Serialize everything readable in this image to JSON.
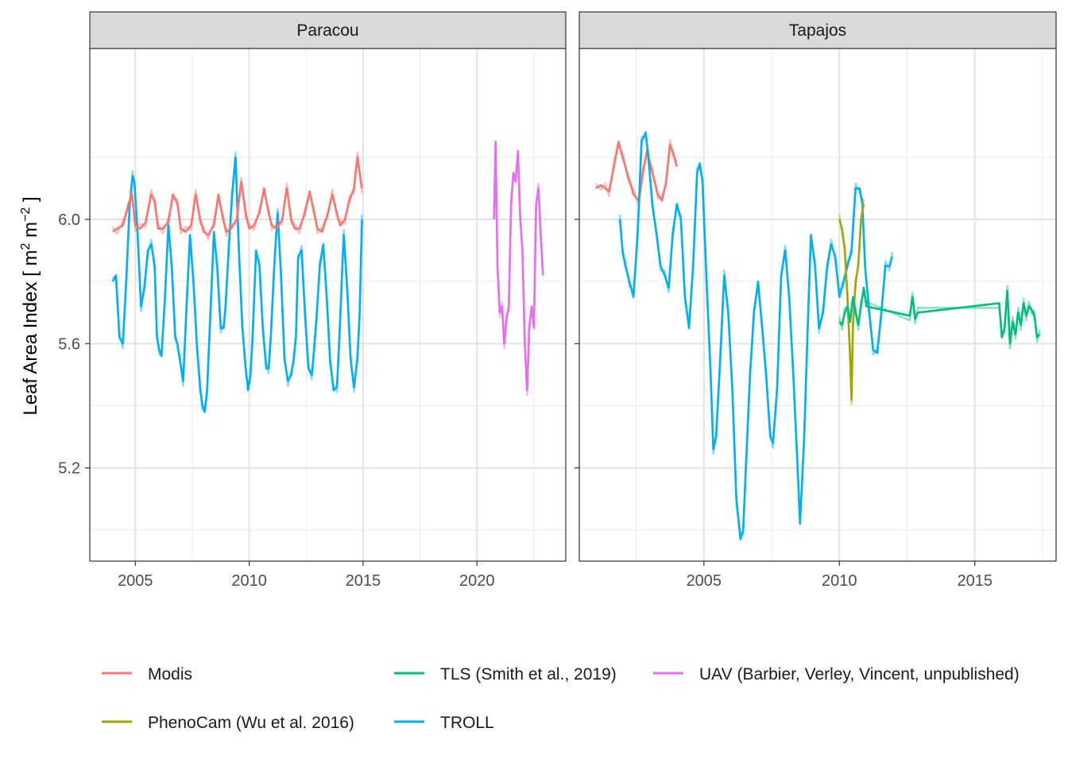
{
  "chart_data": {
    "type": "line",
    "ylabel": "Leaf Area Index [ m² m⁻² ]",
    "ylabel_parts": {
      "main": "Leaf Area Index [ m",
      "sup1": "2",
      "mid": " m",
      "sup2": "−2",
      "end": " ]"
    },
    "y_range": [
      4.9,
      6.55
    ],
    "y_ticks": [
      5.2,
      5.6,
      6.0
    ],
    "y_tick_labels": [
      "5.2",
      "5.6",
      "6.0"
    ],
    "grid": true,
    "legend_position": "bottom",
    "colors": {
      "Modis": "#F8766D",
      "PhenoCam (Wu et al. 2016)": "#A3A500",
      "TLS (Smith et al., 2019)": "#00BF7D",
      "TROLL": "#00B0F6",
      "UAV (Barbier, Verley, Vincent, unpublished)": "#E76BF3"
    },
    "legend": [
      "Modis",
      "PhenoCam (Wu et al. 2016)",
      "TLS (Smith et al., 2019)",
      "TROLL",
      "UAV (Barbier, Verley, Vincent, unpublished)"
    ],
    "panels": [
      {
        "title": "Paracou",
        "x_range": [
          2003.0,
          2023.9
        ],
        "x_ticks": [
          2005,
          2010,
          2015,
          2020
        ],
        "x_tick_labels": [
          "2005",
          "2010",
          "2015",
          "2020"
        ],
        "series": [
          {
            "name": "TROLL",
            "x": [
              2004.0,
              2004.15,
              2004.3,
              2004.45,
              2004.6,
              2004.75,
              2004.88,
              2004.96,
              2005.1,
              2005.25,
              2005.4,
              2005.55,
              2005.7,
              2005.85,
              2005.95,
              2006.05,
              2006.15,
              2006.3,
              2006.45,
              2006.6,
              2006.75,
              2006.85,
              2006.95,
              2007.1,
              2007.25,
              2007.4,
              2007.55,
              2007.7,
              2007.85,
              2007.95,
              2008.05,
              2008.15,
              2008.3,
              2008.45,
              2008.6,
              2008.75,
              2008.88,
              2008.96,
              2009.1,
              2009.25,
              2009.4,
              2009.55,
              2009.7,
              2009.85,
              2009.95,
              2010.05,
              2010.15,
              2010.3,
              2010.45,
              2010.6,
              2010.75,
              2010.85,
              2010.95,
              2011.1,
              2011.25,
              2011.4,
              2011.55,
              2011.7,
              2011.85,
              2011.95,
              2012.05,
              2012.15,
              2012.3,
              2012.45,
              2012.6,
              2012.75,
              2012.85,
              2012.95,
              2013.1,
              2013.25,
              2013.4,
              2013.55,
              2013.7,
              2013.85,
              2013.95,
              2014.05,
              2014.15,
              2014.3,
              2014.45,
              2014.6,
              2014.75,
              2014.85,
              2014.95
            ],
            "y": [
              5.8,
              5.82,
              5.62,
              5.6,
              5.8,
              6.05,
              6.14,
              6.12,
              5.95,
              5.72,
              5.78,
              5.9,
              5.92,
              5.85,
              5.62,
              5.58,
              5.56,
              5.75,
              5.98,
              5.85,
              5.62,
              5.6,
              5.55,
              5.48,
              5.72,
              5.95,
              5.8,
              5.6,
              5.45,
              5.4,
              5.38,
              5.45,
              5.7,
              5.96,
              5.84,
              5.65,
              5.65,
              5.72,
              5.9,
              6.08,
              6.2,
              5.9,
              5.65,
              5.52,
              5.45,
              5.5,
              5.62,
              5.9,
              5.85,
              5.65,
              5.52,
              5.52,
              5.62,
              5.85,
              6.02,
              5.82,
              5.55,
              5.48,
              5.5,
              5.55,
              5.62,
              5.88,
              5.9,
              5.7,
              5.52,
              5.5,
              5.58,
              5.68,
              5.85,
              5.92,
              5.75,
              5.55,
              5.45,
              5.46,
              5.6,
              5.78,
              5.95,
              5.78,
              5.55,
              5.46,
              5.55,
              5.7,
              6.0
            ]
          },
          {
            "name": "Modis",
            "x": [
              2004.0,
              2004.2,
              2004.45,
              2004.7,
              2004.85,
              2005.0,
              2005.2,
              2005.45,
              2005.7,
              2005.85,
              2006.0,
              2006.2,
              2006.45,
              2006.65,
              2006.85,
              2007.0,
              2007.2,
              2007.45,
              2007.65,
              2007.85,
              2008.0,
              2008.2,
              2008.45,
              2008.65,
              2008.85,
              2009.0,
              2009.2,
              2009.45,
              2009.65,
              2009.85,
              2010.0,
              2010.2,
              2010.45,
              2010.65,
              2010.85,
              2011.0,
              2011.2,
              2011.45,
              2011.65,
              2011.85,
              2012.0,
              2012.2,
              2012.45,
              2012.65,
              2012.85,
              2013.0,
              2013.2,
              2013.45,
              2013.65,
              2013.85,
              2014.0,
              2014.2,
              2014.4,
              2014.6,
              2014.75,
              2014.95
            ],
            "y": [
              5.96,
              5.97,
              5.98,
              6.05,
              6.08,
              5.98,
              5.97,
              5.99,
              6.08,
              6.06,
              5.97,
              5.97,
              5.99,
              6.08,
              6.05,
              5.97,
              5.96,
              5.98,
              6.08,
              6.0,
              5.96,
              5.95,
              5.98,
              6.08,
              6.0,
              5.96,
              5.97,
              6.0,
              6.12,
              6.02,
              5.97,
              5.98,
              6.02,
              6.1,
              6.02,
              5.98,
              5.97,
              6.0,
              6.1,
              6.0,
              5.97,
              5.97,
              6.02,
              6.09,
              6.02,
              5.97,
              5.96,
              6.02,
              6.08,
              6.02,
              5.98,
              6.0,
              6.06,
              6.1,
              6.2,
              6.1
            ]
          },
          {
            "name": "UAV (Barbier, Verley, Vincent, unpublished)",
            "x": [
              2020.75,
              2020.82,
              2020.9,
              2021.0,
              2021.1,
              2021.2,
              2021.3,
              2021.4,
              2021.5,
              2021.6,
              2021.7,
              2021.8,
              2021.9,
              2022.0,
              2022.1,
              2022.2,
              2022.3,
              2022.4,
              2022.5,
              2022.6,
              2022.7,
              2022.8,
              2022.9
            ],
            "y": [
              6.0,
              6.25,
              5.85,
              5.7,
              5.72,
              5.6,
              5.68,
              5.72,
              6.05,
              6.15,
              6.12,
              6.22,
              6.0,
              5.9,
              5.6,
              5.45,
              5.65,
              5.72,
              5.65,
              6.05,
              6.1,
              5.95,
              5.82
            ]
          }
        ]
      },
      {
        "title": "Tapajos",
        "x_range": [
          2000.4,
          2018.0
        ],
        "x_ticks": [
          2005,
          2010,
          2015
        ],
        "x_tick_labels": [
          "2005",
          "2010",
          "2015"
        ],
        "series": [
          {
            "name": "Modis",
            "x": [
              2001.0,
              2001.2,
              2001.35,
              2001.5,
              2001.7,
              2001.85,
              2002.0,
              2002.2,
              2002.4,
              2002.6,
              2002.75,
              2002.9,
              2003.1,
              2003.3,
              2003.45,
              2003.6,
              2003.75,
              2003.85,
              2004.0
            ],
            "y": [
              6.1,
              6.11,
              6.1,
              6.09,
              6.18,
              6.25,
              6.2,
              6.14,
              6.08,
              6.06,
              6.15,
              6.22,
              6.15,
              6.08,
              6.06,
              6.12,
              6.24,
              6.22,
              6.17
            ]
          },
          {
            "name": "TROLL",
            "x": [
              2001.9,
              2002.0,
              2002.1,
              2002.25,
              2002.4,
              2002.55,
              2002.7,
              2002.85,
              2002.95,
              2003.1,
              2003.25,
              2003.4,
              2003.55,
              2003.7,
              2003.85,
              2004.0,
              2004.15,
              2004.3,
              2004.45,
              2004.6,
              2004.75,
              2004.85,
              2004.95,
              2005.1,
              2005.25,
              2005.35,
              2005.45,
              2005.6,
              2005.75,
              2005.9,
              2006.05,
              2006.2,
              2006.35,
              2006.45,
              2006.55,
              2006.7,
              2006.85,
              2007.0,
              2007.15,
              2007.3,
              2007.45,
              2007.55,
              2007.7,
              2007.85,
              2008.0,
              2008.15,
              2008.3,
              2008.45,
              2008.55,
              2008.7,
              2008.85,
              2008.95,
              2009.1,
              2009.25,
              2009.4,
              2009.55,
              2009.7,
              2009.85,
              2010.0,
              2010.15,
              2010.3,
              2010.45,
              2010.6,
              2010.75,
              2010.85,
              2010.95,
              2011.1,
              2011.25,
              2011.4,
              2011.55,
              2011.7,
              2011.85,
              2011.95
            ],
            "y": [
              6.0,
              5.9,
              5.85,
              5.8,
              5.75,
              5.95,
              6.25,
              6.28,
              6.2,
              6.05,
              5.95,
              5.85,
              5.82,
              5.78,
              5.95,
              6.05,
              6.0,
              5.75,
              5.65,
              5.85,
              6.15,
              6.18,
              6.12,
              5.8,
              5.5,
              5.26,
              5.3,
              5.55,
              5.82,
              5.7,
              5.45,
              5.1,
              4.97,
              5.0,
              5.2,
              5.5,
              5.7,
              5.8,
              5.65,
              5.5,
              5.3,
              5.28,
              5.45,
              5.82,
              5.9,
              5.75,
              5.5,
              5.22,
              5.02,
              5.3,
              5.7,
              5.95,
              5.85,
              5.65,
              5.7,
              5.85,
              5.92,
              5.88,
              5.75,
              5.8,
              5.85,
              5.9,
              6.1,
              6.1,
              6.05,
              5.85,
              5.7,
              5.58,
              5.57,
              5.7,
              5.85,
              5.85,
              5.88
            ]
          },
          {
            "name": "PhenoCam (Wu et al. 2016)",
            "x": [
              2010.0,
              2010.1,
              2010.2,
              2010.3,
              2010.4,
              2010.45,
              2010.5,
              2010.6,
              2010.7,
              2010.8,
              2010.9
            ],
            "y": [
              6.0,
              5.97,
              5.9,
              5.75,
              5.55,
              5.42,
              5.65,
              5.8,
              5.85,
              6.0,
              6.05
            ]
          },
          {
            "name": "TLS (Smith et al., 2019)",
            "x": [
              2010.0,
              2010.1,
              2010.2,
              2010.3,
              2010.4,
              2010.5,
              2010.6,
              2010.7,
              2010.8,
              2010.9,
              2011.0,
              2012.6,
              2012.7,
              2012.8,
              2012.9,
              2015.9,
              2016.0,
              2016.1,
              2016.2,
              2016.3,
              2016.4,
              2016.5,
              2016.6,
              2016.7,
              2016.8,
              2016.9,
              2017.0,
              2017.1,
              2017.2,
              2017.3,
              2017.4
            ],
            "y": [
              5.67,
              5.66,
              5.7,
              5.72,
              5.67,
              5.75,
              5.7,
              5.66,
              5.72,
              5.78,
              5.72,
              5.69,
              5.75,
              5.68,
              5.7,
              5.73,
              5.62,
              5.65,
              5.77,
              5.6,
              5.67,
              5.63,
              5.7,
              5.66,
              5.73,
              5.69,
              5.72,
              5.71,
              5.69,
              5.62,
              5.63
            ]
          }
        ]
      }
    ]
  }
}
